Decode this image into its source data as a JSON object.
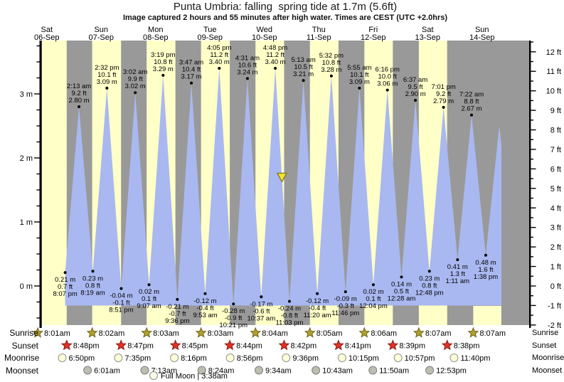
{
  "title": "Punta Umbria: falling  spring tide at 1.7m (5.6ft)",
  "subtitle": "Image captured 2 hours and 55 minutes after high water. Times are CEST (UTC +2.0hrs)",
  "days": [
    {
      "weekday": "Sat",
      "date": "06-Sep"
    },
    {
      "weekday": "Sun",
      "date": "07-Sep"
    },
    {
      "weekday": "Mon",
      "date": "08-Sep"
    },
    {
      "weekday": "Tue",
      "date": "09-Sep"
    },
    {
      "weekday": "Wed",
      "date": "10-Sep"
    },
    {
      "weekday": "Thu",
      "date": "11-Sep"
    },
    {
      "weekday": "Fri",
      "date": "12-Sep"
    },
    {
      "weekday": "Sat",
      "date": "13-Sep"
    },
    {
      "weekday": "Sun",
      "date": "14-Sep"
    }
  ],
  "chart_data": {
    "type": "area",
    "description": "tide height curve with high/low extrema labels",
    "y_axis_left": {
      "unit": "m",
      "major_ticks": [
        0,
        1,
        2,
        3
      ]
    },
    "y_axis_right": {
      "unit": "ft",
      "major_ticks": [
        -2,
        -1,
        0,
        1,
        2,
        3,
        4,
        5,
        6,
        7,
        8,
        9,
        10,
        11,
        12
      ]
    },
    "tide_events": [
      {
        "kind": "low",
        "day": 0,
        "time": "8:07 pm",
        "m": 0.21,
        "ft": 0.7
      },
      {
        "kind": "high",
        "day": 1,
        "time": "2:13 am",
        "m": 2.8,
        "ft": 9.2
      },
      {
        "kind": "low",
        "day": 1,
        "time": "8:19 am",
        "m": 0.23,
        "ft": 0.8
      },
      {
        "kind": "high",
        "day": 1,
        "time": "2:32 pm",
        "m": 3.09,
        "ft": 10.1
      },
      {
        "kind": "low",
        "day": 1,
        "time": "8:51 pm",
        "m": -0.04,
        "ft": -0.1
      },
      {
        "kind": "high",
        "day": 2,
        "time": "3:02 am",
        "m": 3.02,
        "ft": 9.9
      },
      {
        "kind": "low",
        "day": 2,
        "time": "9:07 am",
        "m": 0.02,
        "ft": 0.1
      },
      {
        "kind": "high",
        "day": 2,
        "time": "3:19 pm",
        "m": 3.29,
        "ft": 10.8
      },
      {
        "kind": "low",
        "day": 2,
        "time": "9:36 pm",
        "m": -0.21,
        "ft": -0.7
      },
      {
        "kind": "high",
        "day": 3,
        "time": "3:47 am",
        "m": 3.17,
        "ft": 10.4
      },
      {
        "kind": "low",
        "day": 3,
        "time": "9:53 am",
        "m": -0.12,
        "ft": -0.4
      },
      {
        "kind": "high",
        "day": 3,
        "time": "4:05 pm",
        "m": 3.4,
        "ft": 11.2
      },
      {
        "kind": "low",
        "day": 3,
        "time": "10:21 pm",
        "m": -0.28,
        "ft": -0.9
      },
      {
        "kind": "high",
        "day": 4,
        "time": "4:31 am",
        "m": 3.24,
        "ft": 10.6
      },
      {
        "kind": "low",
        "day": 4,
        "time": "10:37 am",
        "m": -0.17,
        "ft": -0.6
      },
      {
        "kind": "high",
        "day": 4,
        "time": "4:48 pm",
        "m": 3.4,
        "ft": 11.2
      },
      {
        "kind": "low",
        "day": 4,
        "time": "11:03 pm",
        "m": -0.24,
        "ft": -0.8
      },
      {
        "kind": "high",
        "day": 5,
        "time": "5:13 am",
        "m": 3.21,
        "ft": 10.5
      },
      {
        "kind": "low",
        "day": 5,
        "time": "11:20 am",
        "m": -0.12,
        "ft": -0.4
      },
      {
        "kind": "high",
        "day": 5,
        "time": "5:32 pm",
        "m": 3.28,
        "ft": 10.8
      },
      {
        "kind": "low",
        "day": 5,
        "time": "11:46 pm",
        "m": -0.09,
        "ft": -0.3
      },
      {
        "kind": "high",
        "day": 6,
        "time": "5:55 am",
        "m": 3.09,
        "ft": 10.1
      },
      {
        "kind": "low",
        "day": 6,
        "time": "12:04 pm",
        "m": 0.02,
        "ft": 0.1
      },
      {
        "kind": "high",
        "day": 6,
        "time": "6:16 pm",
        "m": 3.06,
        "ft": 10.0
      },
      {
        "kind": "low",
        "day": 7,
        "time": "12:28 am",
        "m": 0.14,
        "ft": 0.5
      },
      {
        "kind": "high",
        "day": 7,
        "time": "6:37 am",
        "m": 2.9,
        "ft": 9.5
      },
      {
        "kind": "low",
        "day": 7,
        "time": "12:48 pm",
        "m": 0.23,
        "ft": 0.8
      },
      {
        "kind": "high",
        "day": 7,
        "time": "7:01 pm",
        "m": 2.79,
        "ft": 9.2
      },
      {
        "kind": "low",
        "day": 8,
        "time": "1:11 am",
        "m": 0.41,
        "ft": 1.3
      },
      {
        "kind": "high",
        "day": 8,
        "time": "7:22 am",
        "m": 2.67,
        "ft": 8.8
      },
      {
        "kind": "low",
        "day": 8,
        "time": "1:38 pm",
        "m": 0.48,
        "ft": 1.6
      }
    ],
    "marker": {
      "level_m": 1.7,
      "falling_from_high_day": 4,
      "falling_from_high_time": "4:48 pm"
    }
  },
  "astro": {
    "rows": [
      {
        "label": "Sunrise",
        "icon": "sunrise-star-icon",
        "events": [
          {
            "day": 0,
            "time": "8:01am"
          },
          {
            "day": 1,
            "time": "8:02am"
          },
          {
            "day": 2,
            "time": "8:03am"
          },
          {
            "day": 3,
            "time": "8:03am"
          },
          {
            "day": 4,
            "time": "8:04am"
          },
          {
            "day": 5,
            "time": "8:05am"
          },
          {
            "day": 6,
            "time": "8:06am"
          },
          {
            "day": 7,
            "time": "8:07am"
          },
          {
            "day": 8,
            "time": "8:07am"
          }
        ]
      },
      {
        "label": "Sunset",
        "icon": "sunset-star-icon",
        "events": [
          {
            "day": 0,
            "time": "8:48pm"
          },
          {
            "day": 1,
            "time": "8:47pm"
          },
          {
            "day": 2,
            "time": "8:45pm"
          },
          {
            "day": 3,
            "time": "8:44pm"
          },
          {
            "day": 4,
            "time": "8:42pm"
          },
          {
            "day": 5,
            "time": "8:41pm"
          },
          {
            "day": 6,
            "time": "8:39pm"
          },
          {
            "day": 7,
            "time": "8:38pm"
          }
        ]
      },
      {
        "label": "Moonrise",
        "icon": "moonrise-circle-icon",
        "events": [
          {
            "day": 0,
            "time": "6:50pm"
          },
          {
            "day": 1,
            "time": "7:35pm"
          },
          {
            "day": 2,
            "time": "8:16pm"
          },
          {
            "day": 3,
            "time": "8:56pm"
          },
          {
            "day": 4,
            "time": "9:36pm"
          },
          {
            "day": 5,
            "time": "10:15pm"
          },
          {
            "day": 6,
            "time": "10:57pm"
          },
          {
            "day": 7,
            "time": "11:40pm"
          }
        ]
      },
      {
        "label": "Moonset",
        "icon": "moonset-circle-icon",
        "events": [
          {
            "day": 1,
            "time": "6:01am"
          },
          {
            "day": 2,
            "time": "7:13am"
          },
          {
            "day": 3,
            "time": "8:24am"
          },
          {
            "day": 4,
            "time": "9:34am"
          },
          {
            "day": 5,
            "time": "10:43am"
          },
          {
            "day": 6,
            "time": "11:50am"
          },
          {
            "day": 7,
            "time": "12:53pm"
          }
        ]
      }
    ],
    "full_moon": {
      "label": "Full Moon",
      "separator": " | ",
      "time": "3:38am"
    }
  },
  "colors": {
    "day_band": "#ffffc8",
    "night_band": "#999999",
    "tide_fill": "#a9b8f0",
    "date_red": "#e8403a",
    "marker_fill": "#f2e23c",
    "marker_stroke": "#7a7a10",
    "sunrise_fill": "#b0a030",
    "sunrise_stroke": "#6f6418",
    "sunset_fill": "#e03226",
    "sunset_stroke": "#8a1a10",
    "moonrise_fill": "#ffffd8",
    "moonrise_stroke": "#8f8f8f",
    "moonset_fill": "#bdbdb0",
    "moonset_stroke": "#7f7f7f"
  }
}
